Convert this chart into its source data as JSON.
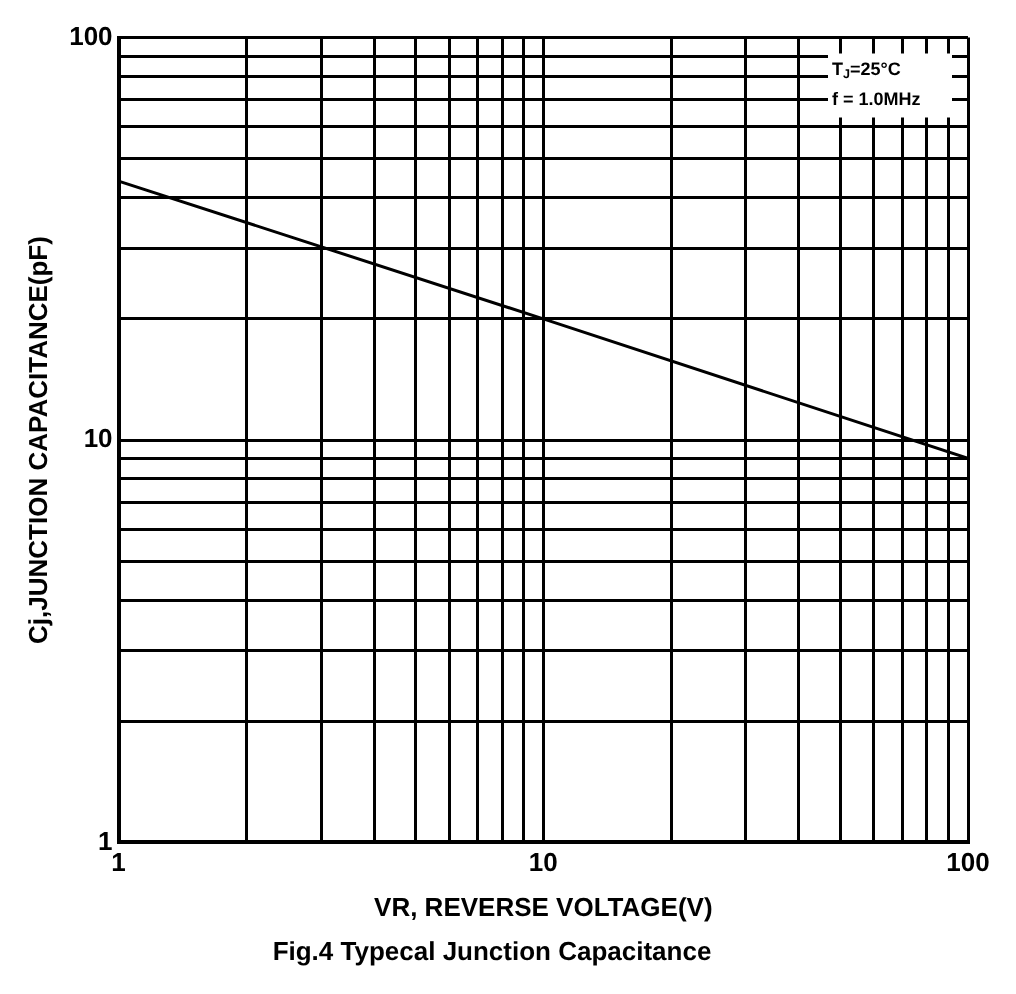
{
  "chart_data": {
    "type": "line",
    "title": "Fig.4 Typecal Junction Capacitance",
    "xlabel": "VR, REVERSE VOLTAGE(V)",
    "ylabel": "Cj,JUNCTION CAPACITANCE(pF)",
    "annotations": [
      "T$_{J}$=25°C",
      "f = 1.0MHz"
    ],
    "x": [
      1,
      10,
      100
    ],
    "series": [
      {
        "color": "#000000",
        "values": [
          44,
          20,
          9
        ]
      }
    ],
    "log": "xy",
    "xlim": [
      1,
      100
    ],
    "ylim": [
      1,
      100
    ],
    "xticks": [
      1,
      {
        "value": 2,
        "label": null
      },
      {
        "value": 3,
        "label": null
      },
      {
        "value": 4,
        "label": null
      },
      {
        "value": 5,
        "label": null
      },
      {
        "value": 6,
        "label": null
      },
      {
        "value": 7,
        "label": null
      },
      {
        "value": 8,
        "label": null
      },
      {
        "value": 9,
        "label": null
      },
      10,
      {
        "value": 20,
        "label": null
      },
      {
        "value": 30,
        "label": null
      },
      {
        "value": 40,
        "label": null
      },
      {
        "value": 50,
        "label": null
      },
      {
        "value": 60,
        "label": null
      },
      {
        "value": 70,
        "label": null
      },
      {
        "value": 80,
        "label": null
      },
      {
        "value": 90,
        "label": null
      },
      100
    ],
    "yticks": [
      1,
      {
        "value": 2,
        "label": null
      },
      {
        "value": 3,
        "label": null
      },
      {
        "value": 4,
        "label": null
      },
      {
        "value": 5,
        "label": null
      },
      {
        "value": 6,
        "label": null
      },
      {
        "value": 7,
        "label": null
      },
      {
        "value": 8,
        "label": null
      },
      {
        "value": 9,
        "label": null
      },
      10,
      {
        "value": 20,
        "label": null
      },
      {
        "value": 30,
        "label": null
      },
      {
        "value": 40,
        "label": null
      },
      {
        "value": 50,
        "label": null
      },
      {
        "value": 60,
        "label": null
      },
      {
        "value": 70,
        "label": null
      },
      {
        "value": 80,
        "label": null
      },
      {
        "value": 90,
        "label": null
      },
      100
    ],
    "grid": true,
    "legend": false,
    "marker": "none",
    "line_style": "solid"
  }
}
